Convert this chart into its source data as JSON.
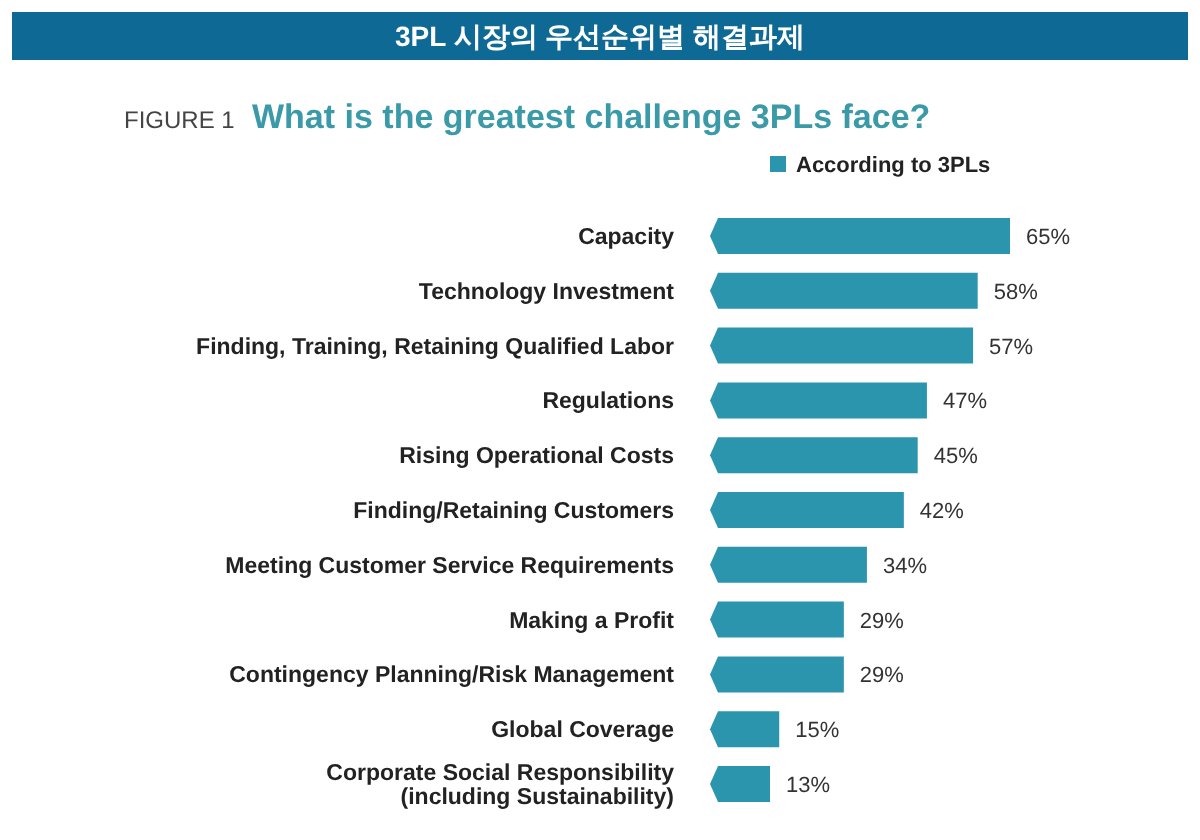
{
  "chart_data": {
    "type": "bar",
    "orientation": "horizontal",
    "title": "3PL 시장의 우선순위별 해결과제",
    "subtitle": "What is the greatest challenge 3PLs face?",
    "annotations": [
      "FIGURE 1"
    ],
    "legend": "top right",
    "categories": [
      "Capacity",
      "Technology Investment",
      "Finding, Training, Retaining Qualified Labor",
      "Regulations",
      "Rising Operational Costs",
      "Finding/Retaining Customers",
      "Meeting Customer Service Requirements",
      "Making a Profit",
      "Contingency Planning/Risk Management",
      "Global Coverage",
      "Corporate Social Responsibility\n(including Sustainability)"
    ],
    "series": [
      {
        "name": "According to 3PLs",
        "color": "#2b95ad",
        "values": [
          65,
          58,
          57,
          47,
          45,
          42,
          34,
          29,
          29,
          15,
          13
        ],
        "value_labels": [
          "65%",
          "58%",
          "57%",
          "47%",
          "45%",
          "42%",
          "34%",
          "29%",
          "29%",
          "15%",
          "13%"
        ]
      }
    ]
  }
}
